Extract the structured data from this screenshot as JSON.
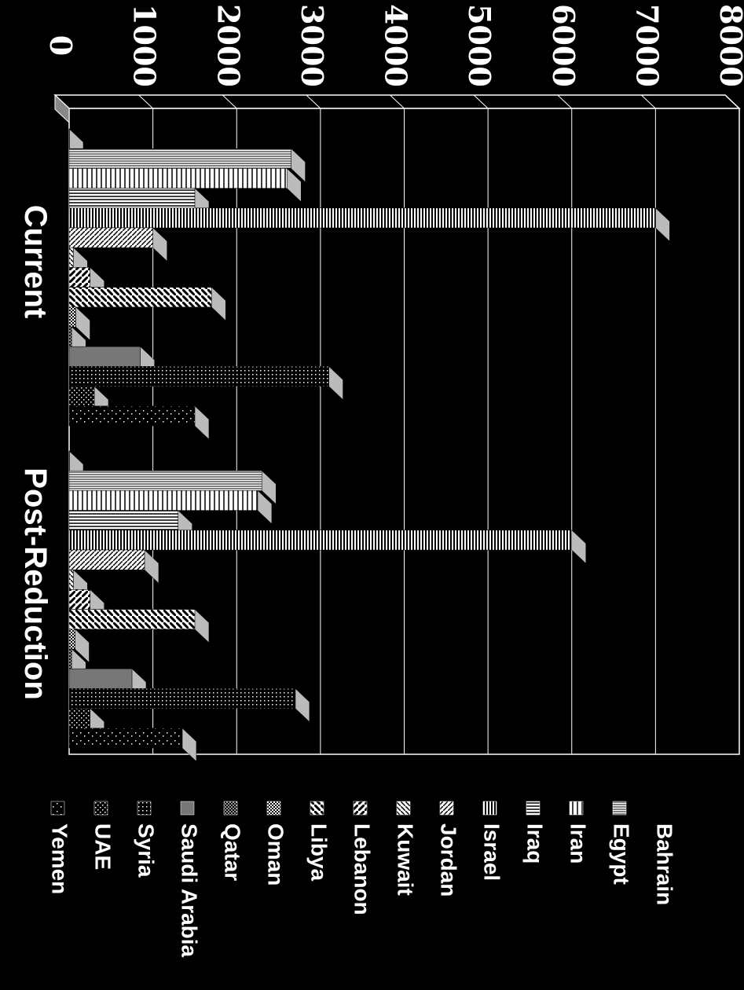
{
  "chart_data": {
    "type": "bar",
    "orientation": "rotated-90-clockwise",
    "categories": [
      "Current",
      "Post-Reduction"
    ],
    "yticks": [
      "0",
      "1000",
      "2000",
      "3000",
      "4000",
      "5000",
      "6000",
      "7000",
      "8000"
    ],
    "ylim": [
      0,
      8000
    ],
    "grid": true,
    "legend_position": "bottom",
    "series": [
      {
        "name": "Bahrain",
        "values": [
          0,
          0
        ]
      },
      {
        "name": "Egypt",
        "values": [
          2650,
          2300
        ]
      },
      {
        "name": "Iran",
        "values": [
          2600,
          2250
        ]
      },
      {
        "name": "Iraq",
        "values": [
          1500,
          1300
        ]
      },
      {
        "name": "Israel",
        "values": [
          7000,
          6000
        ]
      },
      {
        "name": "Jordan",
        "values": [
          1000,
          900
        ]
      },
      {
        "name": "Kuwait",
        "values": [
          50,
          50
        ]
      },
      {
        "name": "Lebanon",
        "values": [
          250,
          250
        ]
      },
      {
        "name": "Libya",
        "values": [
          1700,
          1500
        ]
      },
      {
        "name": "Oman",
        "values": [
          80,
          70
        ]
      },
      {
        "name": "Qatar",
        "values": [
          30,
          30
        ]
      },
      {
        "name": "Saudi Arabia",
        "values": [
          850,
          750
        ]
      },
      {
        "name": "Syria",
        "values": [
          3100,
          2700
        ]
      },
      {
        "name": "UAE",
        "values": [
          300,
          250
        ]
      },
      {
        "name": "Yemen",
        "values": [
          1500,
          1350
        ]
      }
    ]
  }
}
